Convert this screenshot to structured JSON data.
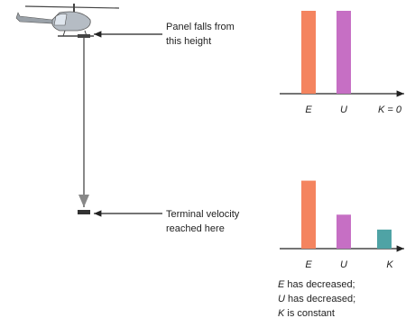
{
  "labels": {
    "top": [
      "Panel falls from",
      "this height"
    ],
    "bottom": [
      "Terminal velocity",
      "reached here"
    ]
  },
  "caption": [
    {
      "var": "E",
      "text": " has decreased;"
    },
    {
      "var": "U",
      "text": " has decreased;"
    },
    {
      "var": "K",
      "text": " is constant"
    }
  ],
  "chart_data": [
    {
      "type": "bar",
      "categories": [
        "E",
        "U",
        "K = 0"
      ],
      "values": [
        100,
        100,
        0
      ],
      "colors": [
        "#f4845f",
        "#c66fc4",
        "#4fa3a5"
      ],
      "ylim": [
        0,
        100
      ]
    },
    {
      "type": "bar",
      "categories": [
        "E",
        "U",
        "K"
      ],
      "values": [
        82,
        41,
        23
      ],
      "colors": [
        "#f4845f",
        "#c66fc4",
        "#4fa3a5"
      ],
      "ylim": [
        0,
        100
      ]
    }
  ]
}
